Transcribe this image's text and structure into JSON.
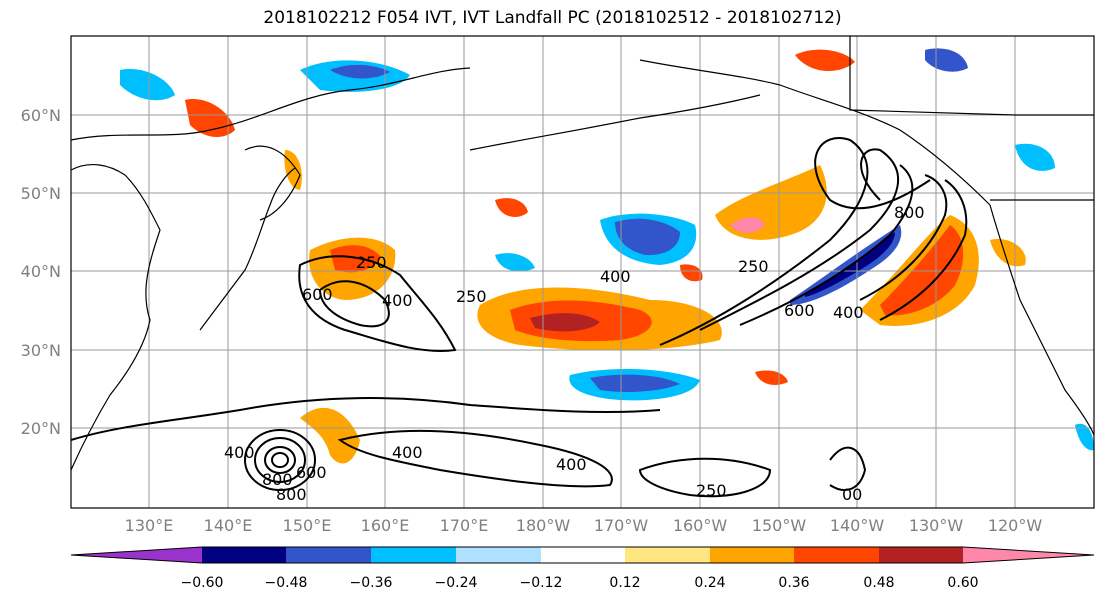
{
  "title": "2018102212 F054 IVT, IVT Landfall PC (2018102512 - 2018102712)",
  "lat_ticks": [
    "20°N",
    "30°N",
    "40°N",
    "50°N",
    "60°N"
  ],
  "lon_ticks": [
    "130°E",
    "140°E",
    "150°E",
    "160°E",
    "170°E",
    "180°W",
    "170°W",
    "160°W",
    "150°W",
    "140°W",
    "130°W",
    "120°W"
  ],
  "colorbar": {
    "labels": [
      "−0.60",
      "−0.48",
      "−0.36",
      "−0.24",
      "−0.12",
      "0.12",
      "0.24",
      "0.36",
      "0.48",
      "0.60"
    ],
    "colors": [
      "#9933cc",
      "#000080",
      "#3355cc",
      "#00bfff",
      "#b0e0ff",
      "#ffffff",
      "#ffe680",
      "#ffa500",
      "#ff4500",
      "#b22222",
      "#ff88aa"
    ]
  },
  "contour_labels": [
    "250",
    "400",
    "600",
    "800",
    "400",
    "250",
    "600",
    "800",
    "400",
    "400",
    "600",
    "800",
    "400",
    "250",
    "400",
    "250",
    "00"
  ]
}
